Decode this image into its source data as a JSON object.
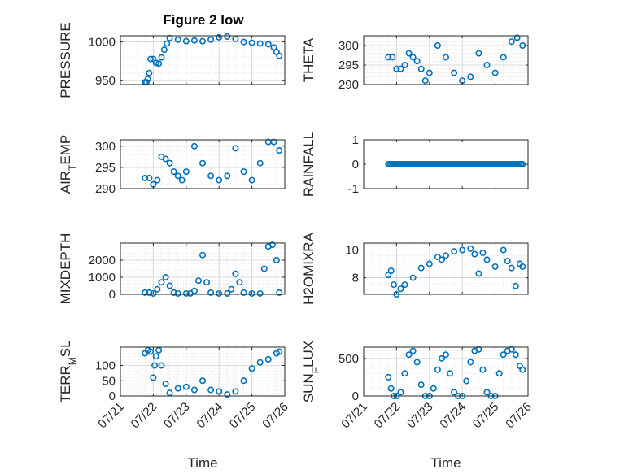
{
  "figure": {
    "title": "Figure 2 low",
    "marker_color": "#0072BD",
    "marker": "circle"
  },
  "chart_data": [
    {
      "type": "scatter",
      "title": "Figure 2 low",
      "ylabel": "PRESSURE",
      "xlabel": "",
      "xlim": [
        "07/21",
        "07/26"
      ],
      "ylim": [
        945,
        1008
      ],
      "xticks": [
        "07/21",
        "07/22",
        "07/23",
        "07/24",
        "07/25",
        "07/26"
      ],
      "xticklabels_shown": false,
      "yticks": [
        950,
        1000
      ],
      "yticklabels": [
        "950",
        "1000"
      ],
      "grid": true,
      "minor_grid": true,
      "x": [
        "07/21 18:00",
        "07/21 19:00",
        "07/21 20:00",
        "07/21 21:00",
        "07/21 22:00",
        "07/22 00:00",
        "07/22 02:00",
        "07/22 04:00",
        "07/22 06:00",
        "07/22 08:00",
        "07/22 10:00",
        "07/22 12:00",
        "07/22 18:00",
        "07/23 00:00",
        "07/23 06:00",
        "07/23 12:00",
        "07/23 18:00",
        "07/24 00:00",
        "07/24 06:00",
        "07/24 12:00",
        "07/24 18:00",
        "07/25 00:00",
        "07/25 06:00",
        "07/25 12:00",
        "07/25 16:00",
        "07/25 18:00",
        "07/25 20:00"
      ],
      "y": [
        948,
        948,
        952,
        960,
        978,
        978,
        973,
        972,
        980,
        990,
        998,
        1005,
        1003,
        1001,
        1002,
        1001,
        1003,
        1006,
        1007,
        1004,
        1000,
        999,
        998,
        997,
        993,
        987,
        982
      ]
    },
    {
      "type": "scatter",
      "ylabel": "THETA",
      "xlabel": "",
      "xlim": [
        "07/21",
        "07/26"
      ],
      "ylim": [
        290,
        302.5
      ],
      "xticks": [
        "07/21",
        "07/22",
        "07/23",
        "07/24",
        "07/25",
        "07/26"
      ],
      "xticklabels_shown": false,
      "yticks": [
        290,
        295,
        300
      ],
      "yticklabels": [
        "290",
        "295",
        "300"
      ],
      "grid": true,
      "minor_grid": true,
      "x": [
        "07/21 18:00",
        "07/21 21:00",
        "07/22 00:00",
        "07/22 03:00",
        "07/22 06:00",
        "07/22 09:00",
        "07/22 12:00",
        "07/22 15:00",
        "07/22 18:00",
        "07/22 21:00",
        "07/23 00:00",
        "07/23 06:00",
        "07/23 12:00",
        "07/23 18:00",
        "07/24 00:00",
        "07/24 06:00",
        "07/24 12:00",
        "07/24 18:00",
        "07/25 00:00",
        "07/25 06:00",
        "07/25 12:00",
        "07/25 16:00",
        "07/25 20:00"
      ],
      "y": [
        297,
        297,
        294,
        294,
        295,
        298,
        297,
        296,
        294,
        291,
        293,
        300,
        297,
        293,
        291,
        292,
        298,
        295,
        293,
        297,
        301,
        302,
        300
      ]
    },
    {
      "type": "scatter",
      "ylabel": "AIR_TEMP",
      "xlabel": "",
      "xlim": [
        "07/21",
        "07/26"
      ],
      "ylim": [
        290,
        301.5
      ],
      "xticks": [
        "07/21",
        "07/22",
        "07/23",
        "07/24",
        "07/25",
        "07/26"
      ],
      "xticklabels_shown": false,
      "yticks": [
        290,
        295,
        300
      ],
      "yticklabels": [
        "290",
        "295",
        "300"
      ],
      "grid": true,
      "minor_grid": true,
      "x": [
        "07/21 18:00",
        "07/21 21:00",
        "07/22 00:00",
        "07/22 03:00",
        "07/22 06:00",
        "07/22 09:00",
        "07/22 12:00",
        "07/22 15:00",
        "07/22 18:00",
        "07/22 21:00",
        "07/23 00:00",
        "07/23 06:00",
        "07/23 12:00",
        "07/23 18:00",
        "07/24 00:00",
        "07/24 06:00",
        "07/24 12:00",
        "07/24 18:00",
        "07/25 00:00",
        "07/25 06:00",
        "07/25 12:00",
        "07/25 16:00",
        "07/25 20:00"
      ],
      "y": [
        292.5,
        292.5,
        291,
        292,
        297.5,
        297,
        296,
        294,
        293,
        292,
        294,
        300,
        296,
        293,
        292,
        293,
        299.5,
        294,
        292,
        296,
        301,
        301,
        299
      ]
    },
    {
      "type": "scatter",
      "ylabel": "RAINFALL",
      "xlabel": "",
      "xlim": [
        "07/21",
        "07/26"
      ],
      "ylim": [
        -1,
        1
      ],
      "xticks": [
        "07/21",
        "07/22",
        "07/23",
        "07/24",
        "07/25",
        "07/26"
      ],
      "xticklabels_shown": false,
      "yticks": [
        -1,
        0,
        1
      ],
      "yticklabels": [
        "-1",
        "0",
        "1"
      ],
      "grid": false,
      "minor_grid": false,
      "x": [
        "07/21 18:00",
        "07/25 20:00"
      ],
      "y": [
        0,
        0
      ],
      "constant_series": true
    },
    {
      "type": "scatter",
      "ylabel": "MIXDEPTH",
      "xlabel": "",
      "xlim": [
        "07/21",
        "07/26"
      ],
      "ylim": [
        0,
        3000
      ],
      "xticks": [
        "07/21",
        "07/22",
        "07/23",
        "07/24",
        "07/25",
        "07/26"
      ],
      "xticklabels_shown": false,
      "yticks": [
        0,
        1000,
        2000
      ],
      "yticklabels": [
        "0",
        "1000",
        "2000"
      ],
      "grid": true,
      "minor_grid": true,
      "x": [
        "07/21 18:00",
        "07/21 21:00",
        "07/22 00:00",
        "07/22 03:00",
        "07/22 06:00",
        "07/22 09:00",
        "07/22 12:00",
        "07/22 15:00",
        "07/22 18:00",
        "07/23 00:00",
        "07/23 03:00",
        "07/23 06:00",
        "07/23 09:00",
        "07/23 12:00",
        "07/23 15:00",
        "07/23 18:00",
        "07/24 00:00",
        "07/24 06:00",
        "07/24 09:00",
        "07/24 12:00",
        "07/24 15:00",
        "07/24 18:00",
        "07/25 00:00",
        "07/25 06:00",
        "07/25 09:00",
        "07/25 12:00",
        "07/25 15:00",
        "07/25 18:00",
        "07/25 20:00"
      ],
      "y": [
        100,
        100,
        50,
        300,
        700,
        1000,
        500,
        100,
        50,
        50,
        50,
        200,
        800,
        2300,
        700,
        100,
        50,
        50,
        300,
        1200,
        700,
        100,
        50,
        50,
        1500,
        2800,
        2900,
        2000,
        100
      ]
    },
    {
      "type": "scatter",
      "ylabel": "H2OMIXRA",
      "xlabel": "",
      "xlim": [
        "07/21",
        "07/26"
      ],
      "ylim": [
        6.8,
        10.5
      ],
      "xticks": [
        "07/21",
        "07/22",
        "07/23",
        "07/24",
        "07/25",
        "07/26"
      ],
      "xticklabels_shown": false,
      "yticks": [
        8,
        10
      ],
      "yticklabels": [
        "8",
        "10"
      ],
      "grid": true,
      "minor_grid": true,
      "x": [
        "07/21 18:00",
        "07/21 20:00",
        "07/21 22:00",
        "07/22 00:00",
        "07/22 03:00",
        "07/22 06:00",
        "07/22 12:00",
        "07/22 18:00",
        "07/23 00:00",
        "07/23 06:00",
        "07/23 09:00",
        "07/23 12:00",
        "07/23 18:00",
        "07/24 00:00",
        "07/24 06:00",
        "07/24 09:00",
        "07/24 12:00",
        "07/24 15:00",
        "07/24 18:00",
        "07/25 00:00",
        "07/25 06:00",
        "07/25 09:00",
        "07/25 12:00",
        "07/25 15:00",
        "07/25 18:00",
        "07/25 20:00"
      ],
      "y": [
        8.2,
        8.5,
        7.5,
        6.8,
        7.2,
        7.5,
        8.0,
        8.7,
        9.0,
        9.5,
        9.3,
        9.6,
        9.9,
        10.0,
        10.1,
        9.7,
        8.3,
        9.8,
        9.3,
        8.8,
        10.0,
        9.2,
        8.7,
        7.4,
        9.0,
        8.8
      ]
    },
    {
      "type": "scatter",
      "ylabel": "TERR_MSL",
      "xlabel": "Time",
      "xlim": [
        "07/21",
        "07/26"
      ],
      "ylim": [
        0,
        160
      ],
      "xticks": [
        "07/21",
        "07/22",
        "07/23",
        "07/24",
        "07/25",
        "07/26"
      ],
      "xticklabels": [
        "07/21",
        "07/22",
        "07/23",
        "07/24",
        "07/25",
        "07/26"
      ],
      "yticks": [
        0,
        50,
        100
      ],
      "yticklabels": [
        "0",
        "50",
        "100"
      ],
      "grid": true,
      "minor_grid": true,
      "x": [
        "07/21 18:00",
        "07/21 20:00",
        "07/21 22:00",
        "07/22 00:00",
        "07/22 01:00",
        "07/22 02:00",
        "07/22 04:00",
        "07/22 06:00",
        "07/22 09:00",
        "07/22 12:00",
        "07/22 18:00",
        "07/23 00:00",
        "07/23 06:00",
        "07/23 12:00",
        "07/23 18:00",
        "07/24 00:00",
        "07/24 06:00",
        "07/24 12:00",
        "07/24 18:00",
        "07/25 00:00",
        "07/25 06:00",
        "07/25 12:00",
        "07/25 18:00",
        "07/25 20:00"
      ],
      "y": [
        140,
        150,
        145,
        60,
        100,
        130,
        150,
        100,
        40,
        10,
        25,
        30,
        20,
        50,
        20,
        15,
        5,
        15,
        50,
        90,
        110,
        120,
        140,
        145
      ]
    },
    {
      "type": "scatter",
      "ylabel": "SUN_FLUX",
      "xlabel": "Time",
      "xlim": [
        "07/21",
        "07/26"
      ],
      "ylim": [
        0,
        650
      ],
      "xticks": [
        "07/21",
        "07/22",
        "07/23",
        "07/24",
        "07/25",
        "07/26"
      ],
      "xticklabels": [
        "07/21",
        "07/22",
        "07/23",
        "07/24",
        "07/25",
        "07/26"
      ],
      "yticks": [
        0,
        500
      ],
      "yticklabels": [
        "0",
        "500"
      ],
      "grid": true,
      "minor_grid": true,
      "x": [
        "07/21 18:00",
        "07/21 20:00",
        "07/21 22:00",
        "07/22 00:00",
        "07/22 03:00",
        "07/22 06:00",
        "07/22 09:00",
        "07/22 12:00",
        "07/22 15:00",
        "07/22 18:00",
        "07/22 21:00",
        "07/23 00:00",
        "07/23 03:00",
        "07/23 06:00",
        "07/23 09:00",
        "07/23 12:00",
        "07/23 15:00",
        "07/23 18:00",
        "07/23 21:00",
        "07/24 00:00",
        "07/24 03:00",
        "07/24 06:00",
        "07/24 09:00",
        "07/24 12:00",
        "07/24 15:00",
        "07/24 18:00",
        "07/24 21:00",
        "07/25 00:00",
        "07/25 03:00",
        "07/25 06:00",
        "07/25 09:00",
        "07/25 12:00",
        "07/25 15:00",
        "07/25 18:00",
        "07/25 20:00"
      ],
      "y": [
        250,
        100,
        0,
        0,
        50,
        300,
        550,
        600,
        450,
        150,
        0,
        0,
        100,
        350,
        500,
        550,
        300,
        50,
        0,
        0,
        200,
        450,
        600,
        620,
        350,
        50,
        0,
        0,
        300,
        550,
        600,
        620,
        550,
        400,
        350
      ]
    }
  ]
}
